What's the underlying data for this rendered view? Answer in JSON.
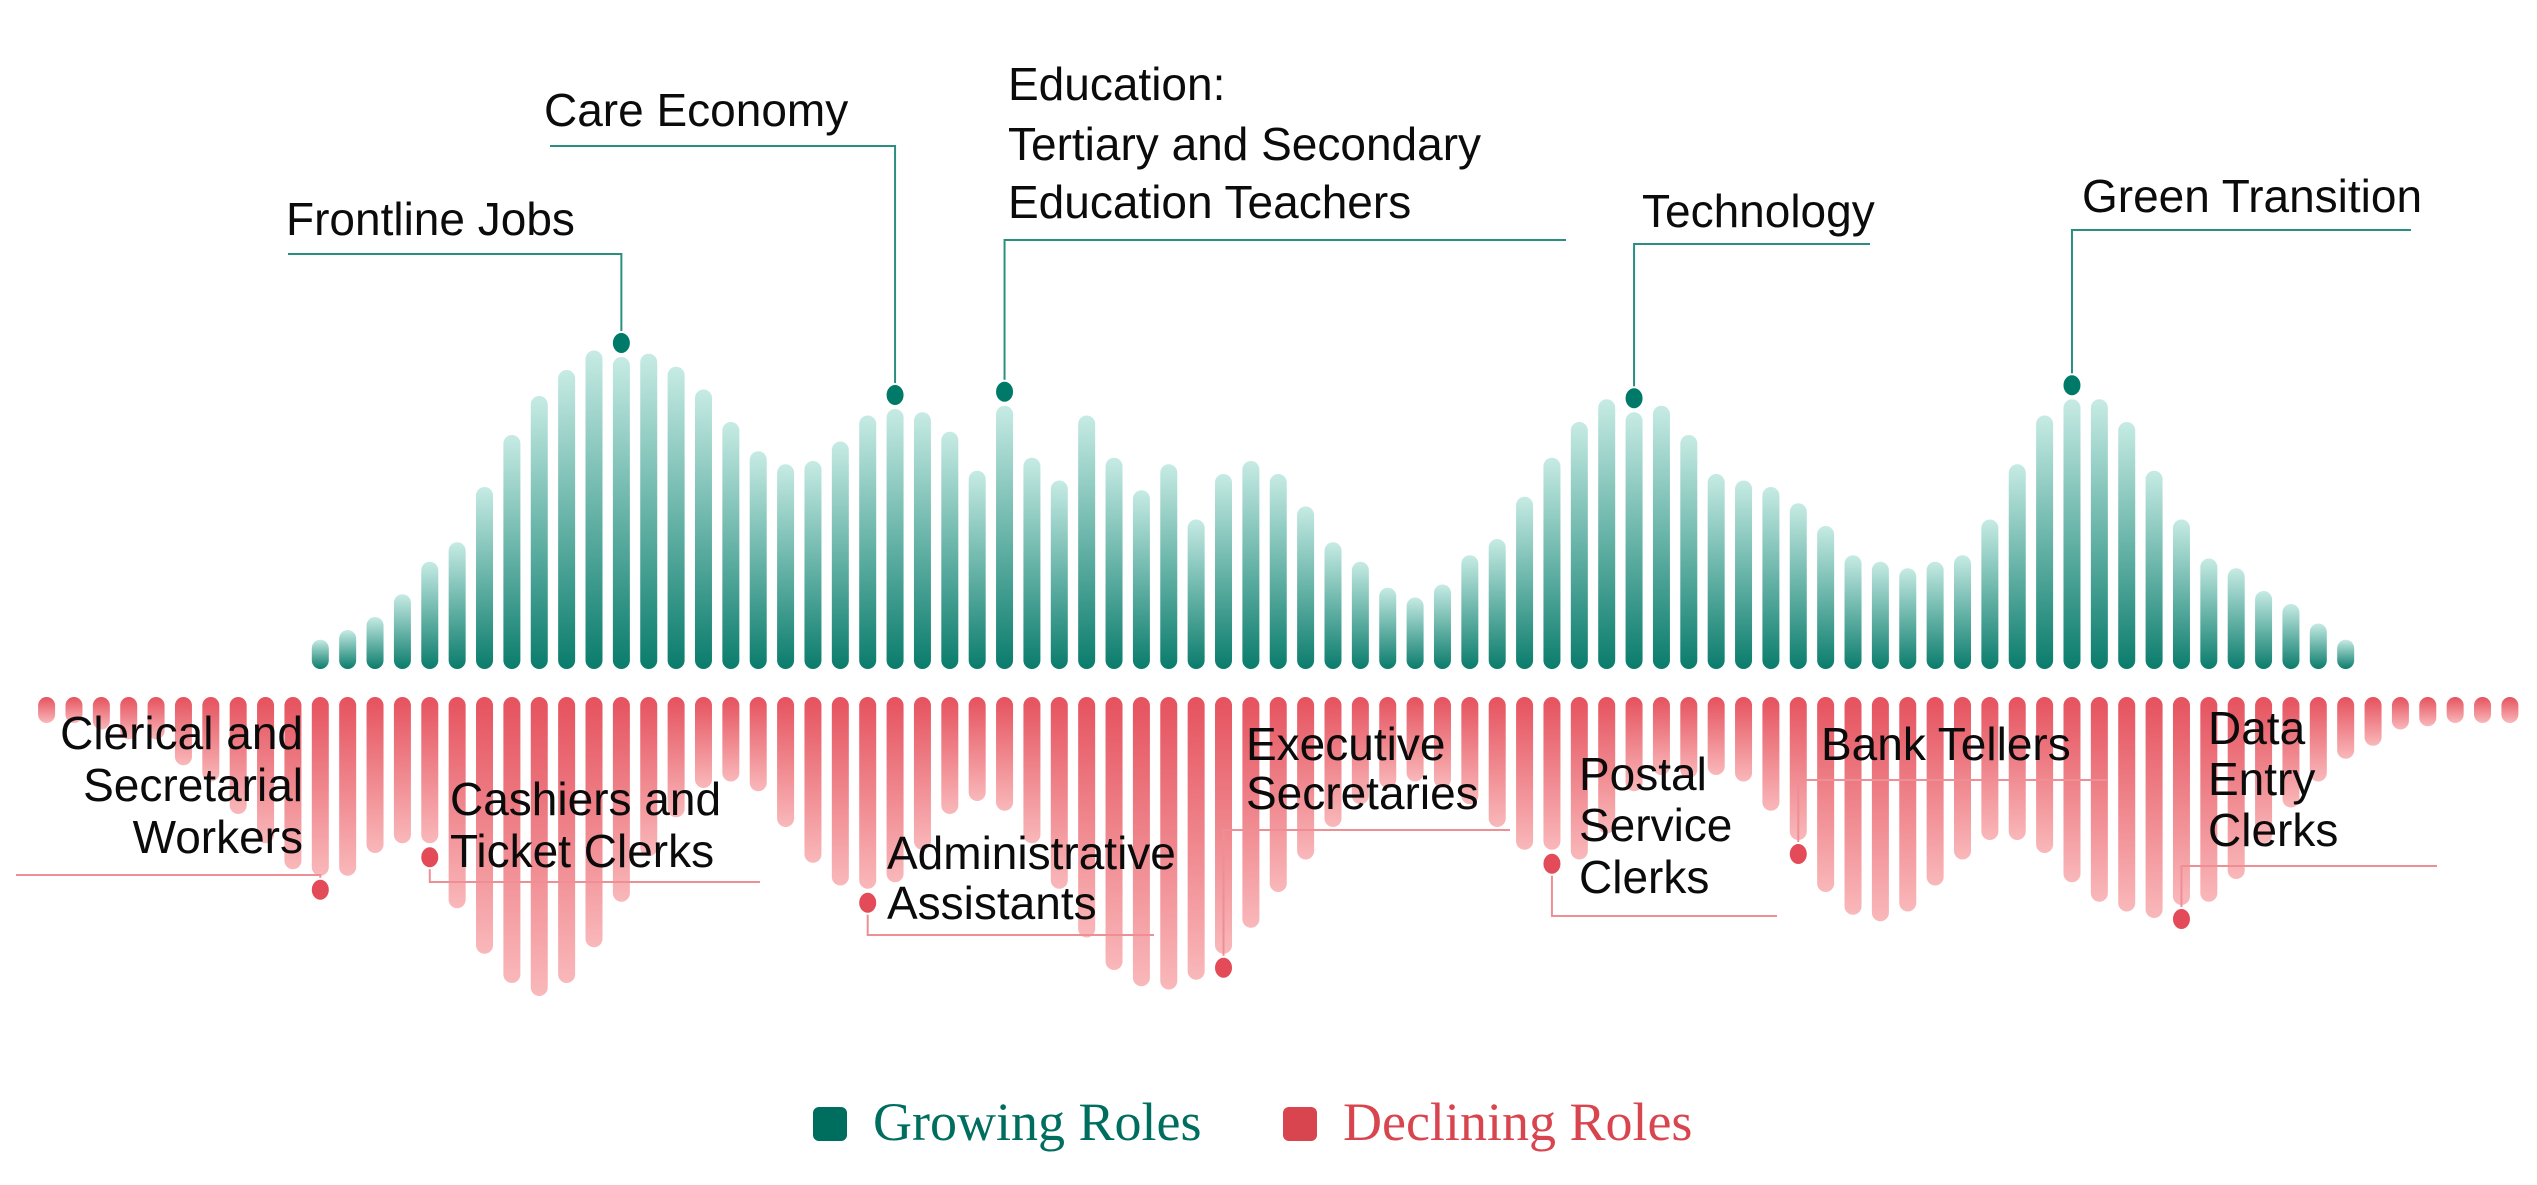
{
  "chart_data": {
    "type": "bar",
    "layout": "mirrored vertical bars around a central baseline",
    "title": "",
    "xlabel": "",
    "ylabel": "",
    "grid": false,
    "legend_position": "bottom-center",
    "series": [
      {
        "name": "Growing Roles",
        "color": "#0a7c6c",
        "color_light": "#c6ebe4",
        "direction": "up",
        "values": [
          null,
          null,
          null,
          null,
          null,
          null,
          null,
          null,
          null,
          null,
          9,
          12,
          16,
          23,
          33,
          39,
          56,
          72,
          84,
          92,
          98,
          96,
          97,
          93,
          86,
          76,
          67,
          63,
          64,
          70,
          78,
          80,
          79,
          73,
          61,
          81,
          65,
          58,
          78,
          65,
          55,
          63,
          46,
          60,
          64,
          60,
          50,
          39,
          33,
          25,
          22,
          26,
          35,
          40,
          53,
          65,
          76,
          83,
          79,
          81,
          72,
          60,
          58,
          56,
          51,
          44,
          35,
          33,
          31,
          33,
          35,
          46,
          63,
          78,
          83,
          83,
          76,
          61,
          46,
          34,
          31,
          24,
          20,
          14,
          9,
          null,
          null,
          null,
          null,
          null,
          null
        ]
      },
      {
        "name": "Declining Roles",
        "color": "#e5525e",
        "color_light": "#f9b8ba",
        "direction": "down",
        "values": [
          8,
          8,
          10,
          13,
          13,
          21,
          26,
          36,
          45,
          53,
          55,
          55,
          48,
          45,
          45,
          65,
          79,
          88,
          92,
          88,
          77,
          63,
          49,
          37,
          28,
          26,
          29,
          40,
          51,
          58,
          59,
          57,
          47,
          36,
          32,
          35,
          45,
          59,
          74,
          84,
          89,
          90,
          87,
          79,
          71,
          60,
          50,
          40,
          33,
          28,
          26,
          28,
          33,
          40,
          47,
          47,
          50,
          42,
          29,
          24,
          25,
          24,
          26,
          35,
          44,
          60,
          67,
          69,
          66,
          58,
          50,
          44,
          44,
          48,
          57,
          63,
          66,
          68,
          64,
          63,
          56,
          45,
          34,
          26,
          19,
          15,
          10,
          9,
          8,
          8,
          8
        ]
      }
    ],
    "annotations": [
      {
        "series": "Growing Roles",
        "bar": 21,
        "lines": [
          "Frontline Jobs"
        ]
      },
      {
        "series": "Growing Roles",
        "bar": 31,
        "lines": [
          "Care Economy"
        ]
      },
      {
        "series": "Growing Roles",
        "bar": 35,
        "lines": [
          "Education:",
          "Tertiary and Secondary",
          "Education Teachers"
        ]
      },
      {
        "series": "Growing Roles",
        "bar": 58,
        "lines": [
          "Technology"
        ]
      },
      {
        "series": "Growing Roles",
        "bar": 74,
        "lines": [
          "Green Transition"
        ]
      },
      {
        "series": "Declining Roles",
        "bar": 10,
        "lines": [
          "Clerical and",
          "Secretarial",
          "Workers"
        ]
      },
      {
        "series": "Declining Roles",
        "bar": 14,
        "lines": [
          "Cashiers and",
          "Ticket Clerks"
        ]
      },
      {
        "series": "Declining Roles",
        "bar": 30,
        "lines": [
          "Administrative",
          "Assistants"
        ]
      },
      {
        "series": "Declining Roles",
        "bar": 43,
        "lines": [
          "Executive",
          "Secretaries"
        ]
      },
      {
        "series": "Declining Roles",
        "bar": 55,
        "lines": [
          "Postal",
          "Service",
          "Clerks"
        ]
      },
      {
        "series": "Declining Roles",
        "bar": 64,
        "lines": [
          "Bank Tellers"
        ]
      },
      {
        "series": "Declining Roles",
        "bar": 78,
        "lines": [
          "Data",
          "Entry",
          "Clerks"
        ]
      }
    ],
    "legend": [
      {
        "label": "Growing Roles",
        "color": "#006e5f"
      },
      {
        "label": "Declining Roles",
        "color": "#d9454e"
      }
    ]
  }
}
